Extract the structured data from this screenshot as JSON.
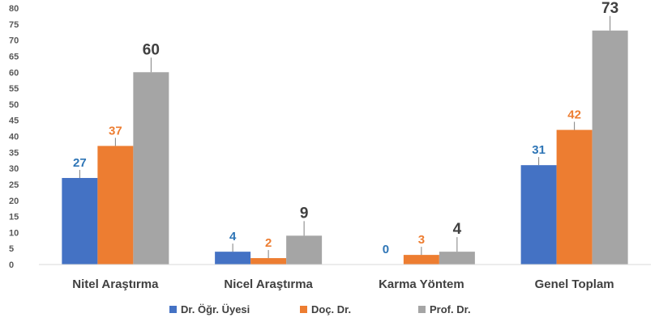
{
  "chart_data": {
    "type": "bar",
    "title": "",
    "xlabel": "",
    "ylabel": "",
    "ylim": [
      0,
      80
    ],
    "yticks": [
      0,
      5,
      10,
      15,
      20,
      25,
      30,
      35,
      40,
      45,
      50,
      55,
      60,
      65,
      70,
      75,
      80
    ],
    "grid": false,
    "legend_position": "bottom",
    "categories": [
      "Nitel Araştırma",
      "Nicel Araştırma",
      "Karma Yöntem",
      "Genel Toplam"
    ],
    "series": [
      {
        "name": "Dr. Öğr. Üyesi",
        "color": "#4472C4",
        "values": [
          27,
          4,
          0,
          31
        ]
      },
      {
        "name": "Doç. Dr.",
        "color": "#ED7D31",
        "values": [
          37,
          2,
          3,
          42
        ]
      },
      {
        "name": "Prof. Dr.",
        "color": "#A5A5A5",
        "values": [
          60,
          9,
          4,
          73
        ]
      }
    ],
    "label_colors": [
      "#2E75B6",
      "#ED7D31",
      "#404040"
    ]
  }
}
